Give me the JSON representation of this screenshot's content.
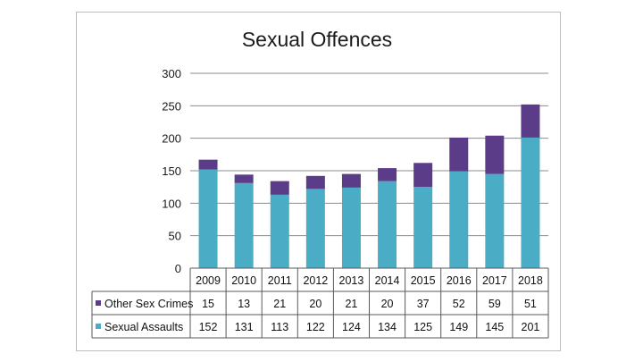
{
  "chart_data": {
    "type": "bar",
    "stacked": true,
    "title": "Sexual Offences",
    "categories": [
      "2009",
      "2010",
      "2011",
      "2012",
      "2013",
      "2014",
      "2015",
      "2016",
      "2017",
      "2018"
    ],
    "series": [
      {
        "name": "Sexual Assaults",
        "color": "#4bacc6",
        "values": [
          152,
          131,
          113,
          122,
          124,
          134,
          125,
          149,
          145,
          201
        ]
      },
      {
        "name": "Other Sex Crimes",
        "color": "#5b3c88",
        "values": [
          15,
          13,
          21,
          20,
          21,
          20,
          37,
          52,
          59,
          51
        ]
      }
    ],
    "ylim": [
      0,
      300
    ],
    "yticks": [
      0,
      50,
      100,
      150,
      200,
      250,
      300
    ],
    "grid": true,
    "data_table": true,
    "colors": {
      "gridline": "#8c8c8c",
      "table_border": "#5a5a5a"
    }
  }
}
